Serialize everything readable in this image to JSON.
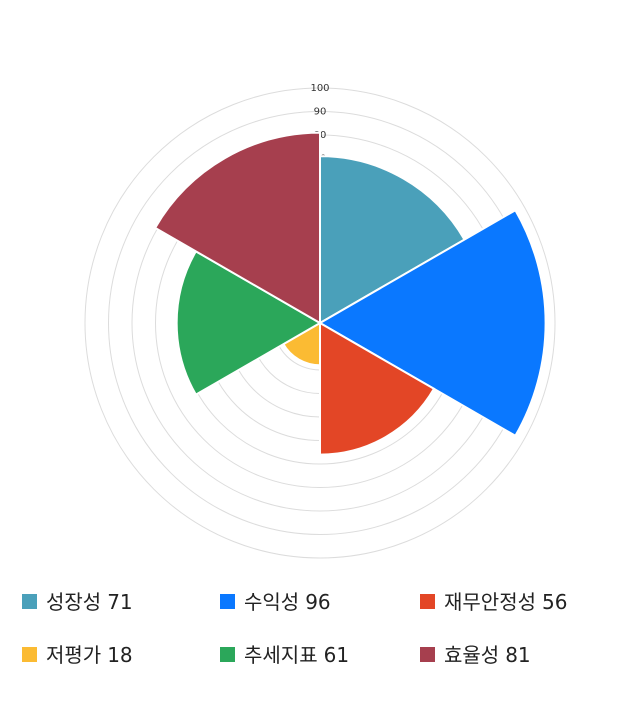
{
  "chart_data": {
    "type": "polar-area",
    "categories": [
      "성장성",
      "수익성",
      "재무안정성",
      "저평가",
      "추세지표",
      "효율성"
    ],
    "values": [
      71,
      96,
      56,
      18,
      61,
      81
    ],
    "colors": [
      "#4aa0ba",
      "#0a78ff",
      "#e34626",
      "#fbbb33",
      "#2ba75a",
      "#a63f4e"
    ],
    "ylim": [
      0,
      100
    ],
    "yticks": [
      0,
      10,
      20,
      30,
      40,
      50,
      60,
      70,
      80,
      90,
      100
    ],
    "grid": true
  }
}
